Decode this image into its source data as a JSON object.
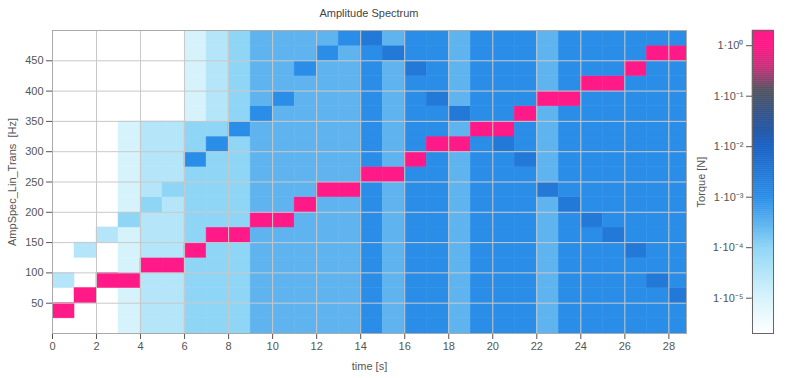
{
  "chart_data": {
    "type": "heatmap",
    "title": "Amplitude Spectrum",
    "x_label": "time [s]",
    "y_label": "AmpSpec_Lin_Trans  [Hz]",
    "xlim": [
      0,
      28.8
    ],
    "ylim": [
      0,
      500
    ],
    "xticks": [
      0,
      2,
      4,
      6,
      8,
      10,
      12,
      14,
      16,
      18,
      20,
      22,
      24,
      26,
      28
    ],
    "yticks": [
      50,
      100,
      150,
      200,
      250,
      300,
      350,
      400,
      450
    ],
    "grid": true,
    "x": [
      0.5,
      1.5,
      2.5,
      3.5,
      4.5,
      5.5,
      6.5,
      7.5,
      8.5,
      9.5,
      10.5,
      11.5,
      12.5,
      13.5,
      14.5,
      15.5,
      16.5,
      17.5,
      18.5,
      19.5,
      20.5,
      21.5,
      22.5,
      23.5,
      24.5,
      25.5,
      26.5,
      27.5,
      28.5
    ],
    "y": [
      12.5,
      37.5,
      62.5,
      87.5,
      112.5,
      137.5,
      162.5,
      187.5,
      212.5,
      237.5,
      262.5,
      287.5,
      312.5,
      337.5,
      362.5,
      387.5,
      412.5,
      437.5,
      462.5,
      487.5
    ],
    "cells": [
      [
        null,
        null,
        null,
        1e-05,
        3e-05,
        3e-05,
        0.0001,
        0.0001,
        0.0001,
        0.0003,
        0.0003,
        0.0003,
        0.0003,
        0.0003,
        0.001,
        0.0003,
        0.001,
        0.001,
        0.0003,
        0.001,
        0.001,
        0.001,
        0.0003,
        0.001,
        0.001,
        0.001,
        0.001,
        0.001,
        0.001
      ],
      [
        1,
        null,
        null,
        1e-05,
        3e-05,
        3e-05,
        0.0001,
        0.0001,
        0.0001,
        0.0003,
        0.0003,
        0.0003,
        0.0003,
        0.0003,
        0.001,
        0.0003,
        0.001,
        0.001,
        0.0003,
        0.001,
        0.001,
        0.001,
        0.0003,
        0.001,
        0.001,
        0.001,
        0.001,
        0.001,
        0.001
      ],
      [
        null,
        1,
        null,
        1e-05,
        3e-05,
        3e-05,
        0.0001,
        0.0001,
        0.0001,
        0.0003,
        0.0003,
        0.0003,
        0.0003,
        0.0003,
        0.001,
        0.0003,
        0.001,
        0.001,
        0.0003,
        0.001,
        0.001,
        0.001,
        0.0003,
        0.001,
        0.001,
        0.001,
        0.001,
        0.001,
        0.003
      ],
      [
        3e-05,
        null,
        1,
        1,
        3e-05,
        3e-05,
        0.0001,
        0.0001,
        0.0001,
        0.0003,
        0.0003,
        0.0003,
        0.0003,
        0.0003,
        0.001,
        0.0003,
        0.001,
        0.001,
        0.0003,
        0.001,
        0.001,
        0.001,
        0.0003,
        0.001,
        0.001,
        0.001,
        0.001,
        0.003,
        0.001
      ],
      [
        null,
        null,
        null,
        1e-05,
        1,
        1,
        0.0001,
        0.0001,
        0.0001,
        0.0003,
        0.0003,
        0.0003,
        0.0003,
        0.0003,
        0.001,
        0.0003,
        0.001,
        0.001,
        0.0003,
        0.001,
        0.001,
        0.001,
        0.0003,
        0.001,
        0.001,
        0.001,
        0.001,
        0.001,
        0.001
      ],
      [
        null,
        3e-05,
        null,
        1e-05,
        3e-05,
        3e-05,
        1,
        0.0001,
        0.0001,
        0.0003,
        0.0003,
        0.0003,
        0.0003,
        0.0003,
        0.001,
        0.0003,
        0.001,
        0.001,
        0.0003,
        0.001,
        0.001,
        0.001,
        0.0003,
        0.001,
        0.001,
        0.001,
        0.003,
        0.001,
        0.001
      ],
      [
        null,
        null,
        3e-05,
        1e-05,
        3e-05,
        3e-05,
        0.0001,
        1,
        1,
        0.0003,
        0.0003,
        0.0003,
        0.0003,
        0.0003,
        0.001,
        0.0003,
        0.001,
        0.001,
        0.0003,
        0.001,
        0.001,
        0.001,
        0.0003,
        0.001,
        0.001,
        0.003,
        0.001,
        0.001,
        0.001
      ],
      [
        null,
        null,
        null,
        0.0001,
        3e-05,
        3e-05,
        0.0001,
        0.0001,
        0.0001,
        1,
        1,
        0.0003,
        0.0003,
        0.0003,
        0.001,
        0.0003,
        0.001,
        0.001,
        0.0003,
        0.001,
        0.001,
        0.001,
        0.0003,
        0.001,
        0.003,
        0.001,
        0.001,
        0.001,
        0.001
      ],
      [
        null,
        null,
        null,
        1e-05,
        0.0001,
        3e-05,
        0.0001,
        0.0001,
        0.0001,
        0.0003,
        0.0003,
        1,
        0.0003,
        0.0003,
        0.001,
        0.0003,
        0.001,
        0.001,
        0.0003,
        0.001,
        0.001,
        0.001,
        0.0003,
        0.003,
        0.001,
        0.001,
        0.001,
        0.001,
        0.001
      ],
      [
        null,
        null,
        null,
        1e-05,
        3e-05,
        0.0001,
        0.0001,
        0.0001,
        0.0001,
        0.0003,
        0.0003,
        0.0003,
        1,
        1,
        0.001,
        0.0003,
        0.001,
        0.001,
        0.0003,
        0.001,
        0.001,
        0.001,
        0.003,
        0.001,
        0.001,
        0.001,
        0.001,
        0.001,
        0.001
      ],
      [
        null,
        null,
        null,
        1e-05,
        3e-05,
        3e-05,
        0.0001,
        0.0001,
        0.0001,
        0.0003,
        0.0003,
        0.0003,
        0.0003,
        0.0003,
        1,
        1,
        0.001,
        0.001,
        0.0003,
        0.001,
        0.001,
        0.001,
        0.0003,
        0.001,
        0.001,
        0.001,
        0.001,
        0.001,
        0.001
      ],
      [
        null,
        null,
        null,
        1e-05,
        3e-05,
        3e-05,
        0.001,
        0.0001,
        0.0001,
        0.0003,
        0.0003,
        0.0003,
        0.0003,
        0.0003,
        0.001,
        0.0003,
        1,
        0.001,
        0.0003,
        0.001,
        0.001,
        0.003,
        0.0003,
        0.001,
        0.001,
        0.001,
        0.001,
        0.001,
        0.001
      ],
      [
        null,
        null,
        null,
        1e-05,
        3e-05,
        3e-05,
        0.0001,
        0.001,
        0.0001,
        0.0003,
        0.0003,
        0.0003,
        0.0003,
        0.0003,
        0.001,
        0.0003,
        0.001,
        1,
        1,
        0.001,
        0.003,
        0.001,
        0.0003,
        0.001,
        0.001,
        0.001,
        0.001,
        0.001,
        0.001
      ],
      [
        null,
        null,
        null,
        1e-05,
        3e-05,
        3e-05,
        0.0001,
        0.0001,
        0.001,
        0.0003,
        0.0003,
        0.0003,
        0.0003,
        0.0003,
        0.001,
        0.0003,
        0.001,
        0.001,
        0.0003,
        1,
        1,
        0.001,
        0.0003,
        0.001,
        0.001,
        0.001,
        0.001,
        0.001,
        0.001
      ],
      [
        null,
        null,
        null,
        null,
        null,
        null,
        1e-05,
        3e-05,
        0.0001,
        0.001,
        0.0003,
        0.0003,
        0.0003,
        0.0003,
        0.001,
        0.0003,
        0.001,
        0.001,
        0.003,
        0.001,
        0.001,
        1,
        0.0003,
        0.001,
        0.001,
        0.001,
        0.001,
        0.001,
        0.001
      ],
      [
        null,
        null,
        null,
        null,
        null,
        null,
        1e-05,
        3e-05,
        0.0001,
        0.0003,
        0.001,
        0.0003,
        0.0003,
        0.0003,
        0.001,
        0.0003,
        0.001,
        0.003,
        0.0003,
        0.001,
        0.001,
        0.001,
        1,
        1,
        0.001,
        0.001,
        0.001,
        0.001,
        0.001
      ],
      [
        null,
        null,
        null,
        null,
        null,
        null,
        1e-05,
        3e-05,
        0.0001,
        0.0003,
        0.0003,
        0.0003,
        0.0003,
        0.0003,
        0.001,
        0.0003,
        0.001,
        0.001,
        0.0003,
        0.001,
        0.001,
        0.001,
        0.0003,
        0.001,
        1,
        1,
        0.001,
        0.001,
        0.001
      ],
      [
        null,
        null,
        null,
        null,
        null,
        null,
        1e-05,
        3e-05,
        0.0001,
        0.0003,
        0.0003,
        0.001,
        0.0003,
        0.0003,
        0.001,
        0.0003,
        0.003,
        0.001,
        0.0003,
        0.001,
        0.001,
        0.001,
        0.0003,
        0.001,
        0.001,
        0.001,
        1,
        0.001,
        0.001
      ],
      [
        null,
        null,
        null,
        null,
        null,
        null,
        1e-05,
        3e-05,
        0.0001,
        0.0003,
        0.0003,
        0.0003,
        0.001,
        0.0003,
        0.001,
        0.003,
        0.001,
        0.001,
        0.0003,
        0.001,
        0.001,
        0.001,
        0.0003,
        0.001,
        0.001,
        0.001,
        0.001,
        1,
        1
      ],
      [
        null,
        null,
        null,
        null,
        null,
        null,
        1e-05,
        3e-05,
        0.0001,
        0.0003,
        0.0003,
        0.0003,
        0.0003,
        0.001,
        0.003,
        0.0003,
        0.001,
        0.001,
        0.0003,
        0.001,
        0.001,
        0.001,
        0.0003,
        0.001,
        0.001,
        0.001,
        0.001,
        0.001,
        0.001
      ]
    ],
    "colorbar": {
      "label": "Torque [N]",
      "log": true,
      "range": [
        2e-06,
        2
      ],
      "ticks": [
        {
          "value": 1,
          "label": "1·10⁰"
        },
        {
          "value": 0.1,
          "label": "1·10⁻¹"
        },
        {
          "value": 0.01,
          "label": "1·10⁻²"
        },
        {
          "value": 0.001,
          "label": "1·10⁻³"
        },
        {
          "value": 0.0001,
          "label": "1·10⁻⁴"
        },
        {
          "value": 1e-05,
          "label": "1·10⁻⁵"
        }
      ]
    }
  }
}
